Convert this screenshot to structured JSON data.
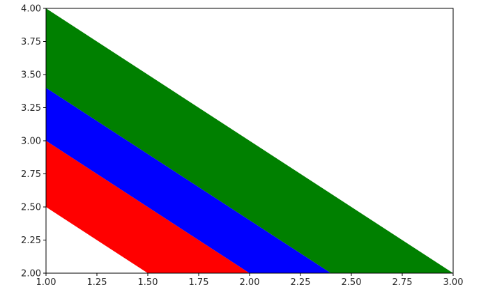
{
  "chart_data": {
    "type": "area",
    "xlim": [
      1.0,
      3.0
    ],
    "ylim": [
      2.0,
      4.0
    ],
    "x_ticks": [
      "1.00",
      "1.25",
      "1.50",
      "1.75",
      "2.00",
      "2.25",
      "2.50",
      "2.75",
      "3.00"
    ],
    "y_ticks": [
      "2.00",
      "2.25",
      "2.50",
      "2.75",
      "3.00",
      "3.25",
      "3.50",
      "3.75",
      "4.00"
    ],
    "grid": false,
    "legend": "none",
    "series": [
      {
        "color": "#ff0000",
        "lower": [
          [
            1.0,
            2.5
          ],
          [
            1.5,
            2.0
          ]
        ],
        "upper": [
          [
            1.0,
            3.0
          ],
          [
            2.0,
            2.0
          ]
        ]
      },
      {
        "color": "#0000ff",
        "lower": [
          [
            1.0,
            3.0
          ],
          [
            2.0,
            2.0
          ]
        ],
        "upper": [
          [
            1.0,
            3.4
          ],
          [
            2.4,
            2.0
          ]
        ]
      },
      {
        "color": "#008000",
        "lower": [
          [
            1.0,
            3.4
          ],
          [
            2.4,
            2.0
          ]
        ],
        "upper": [
          [
            1.0,
            4.0
          ],
          [
            3.0,
            2.0
          ]
        ]
      }
    ]
  }
}
